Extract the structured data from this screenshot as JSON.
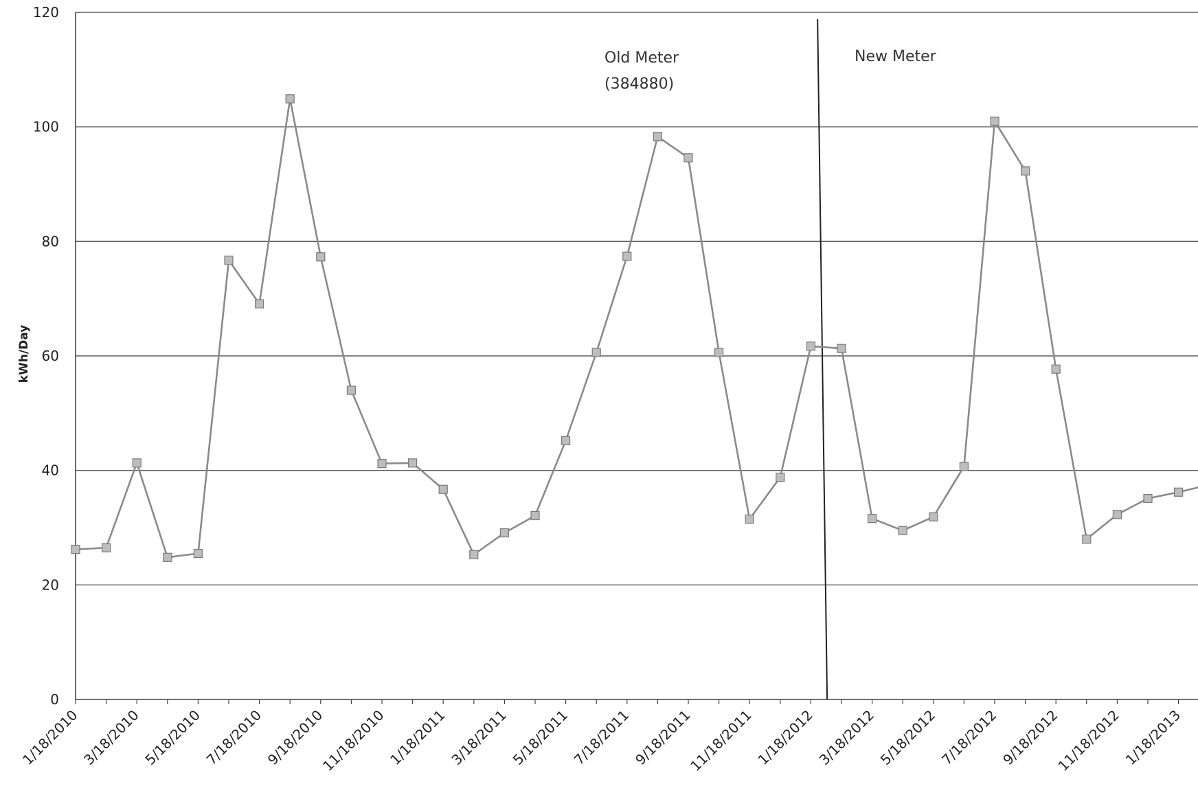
{
  "chart_data": {
    "type": "line",
    "title": "",
    "xlabel": "",
    "ylabel": "kWh/Day",
    "ylim": [
      0,
      120
    ],
    "yticks": [
      "0",
      "20",
      "40",
      "60",
      "80",
      "100",
      "120"
    ],
    "xticks": [
      "1/18/2010",
      "3/18/2010",
      "5/18/2010",
      "7/18/2010",
      "9/18/2010",
      "11/18/2010",
      "1/18/2011",
      "3/18/2011",
      "5/18/2011",
      "7/18/2011",
      "9/18/2011",
      "11/18/2011",
      "1/18/2012",
      "3/18/2012",
      "5/18/2012",
      "7/18/2012",
      "9/18/2012",
      "11/18/2012",
      "1/18/2013"
    ],
    "grid": true,
    "annotations": [
      {
        "lines": [
          "Old Meter",
          "(384880)"
        ]
      },
      {
        "lines": [
          "New Meter"
        ]
      }
    ],
    "divider_date": "2/2012",
    "series": [
      {
        "x": [
          "1/18/2010",
          "2/18/2010",
          "3/18/2010",
          "4/18/2010",
          "5/18/2010",
          "6/18/2010",
          "7/18/2010",
          "8/18/2010",
          "9/18/2010",
          "10/18/2010",
          "11/18/2010",
          "12/18/2010",
          "1/18/2011",
          "2/18/2011",
          "3/18/2011",
          "4/18/2011",
          "5/18/2011",
          "6/18/2011",
          "7/18/2011",
          "8/18/2011",
          "9/18/2011",
          "10/18/2011",
          "11/18/2011",
          "12/18/2011",
          "1/18/2012",
          "2/18/2012",
          "3/18/2012",
          "4/18/2012",
          "5/18/2012",
          "6/18/2012",
          "7/18/2012",
          "8/18/2012",
          "9/18/2012",
          "10/18/2012",
          "11/18/2012",
          "12/18/2012",
          "1/18/2013",
          "2/18/2013"
        ],
        "values": [
          26.2,
          26.5,
          41.3,
          24.8,
          25.5,
          76.7,
          69.1,
          104.9,
          77.3,
          54.0,
          41.2,
          41.3,
          36.7,
          25.3,
          29.1,
          32.1,
          45.2,
          60.6,
          77.4,
          98.3,
          94.6,
          60.6,
          31.5,
          38.8,
          61.7,
          61.3,
          31.6,
          29.5,
          31.9,
          40.7,
          101.0,
          92.3,
          57.7,
          28.0,
          32.3,
          35.1,
          36.2,
          37.5
        ],
        "color": "#8a8a8a"
      }
    ]
  }
}
